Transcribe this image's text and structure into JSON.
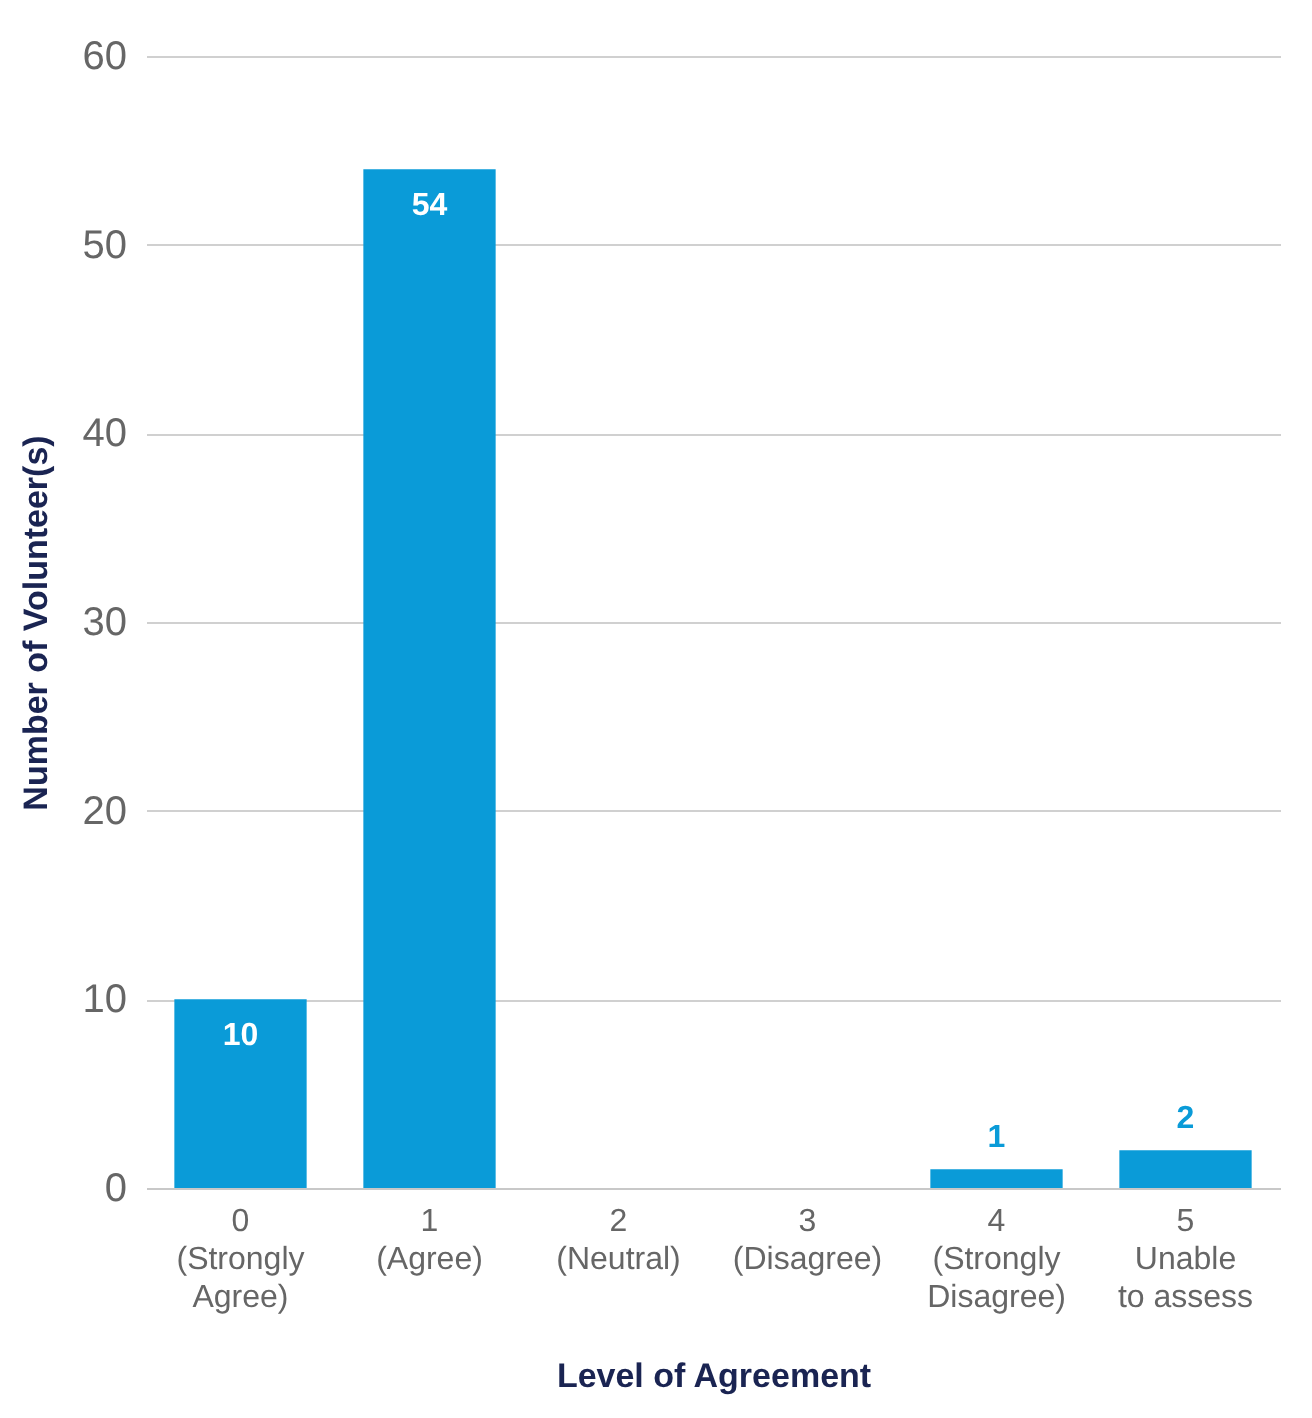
{
  "chart_data": {
    "type": "bar",
    "xlabel": "Level of Agreement",
    "ylabel": "Number of Volunteer(s)",
    "categories": [
      "0\n(Strongly\nAgree)",
      "1\n(Agree)",
      "2\n(Neutral)",
      "3\n(Disagree)",
      "4\n(Strongly\nDisagree)",
      "5\nUnable\nto assess"
    ],
    "values": [
      10,
      54,
      0,
      0,
      1,
      2
    ],
    "value_labels": [
      "10",
      "54",
      null,
      null,
      "1",
      "2"
    ],
    "color": "#0a9bd8",
    "ylim": [
      0,
      60
    ],
    "yticks": [
      0,
      10,
      20,
      30,
      40,
      50,
      60
    ],
    "grid": "y"
  }
}
